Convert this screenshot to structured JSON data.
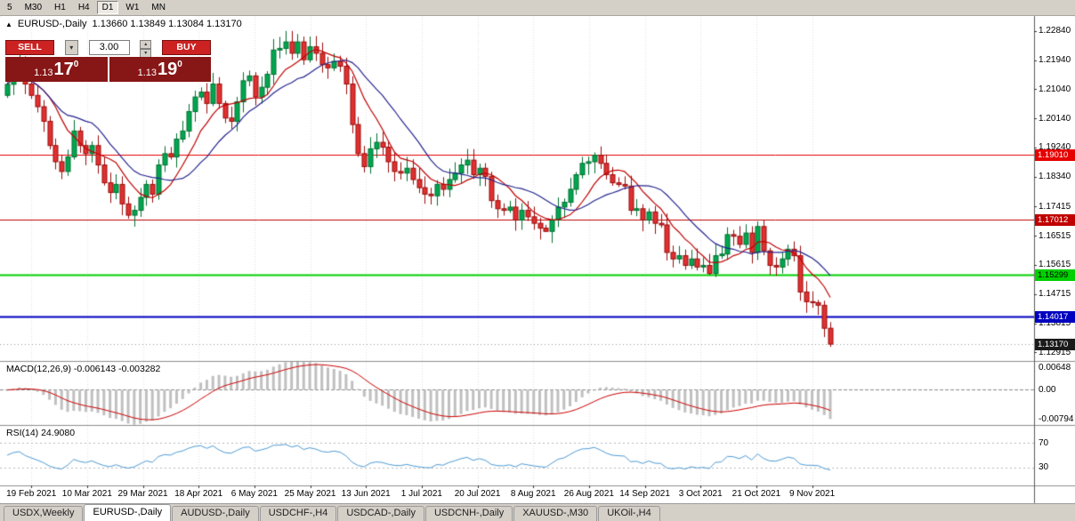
{
  "toolbar": {
    "timeframes": [
      {
        "label": "5"
      },
      {
        "label": "M30"
      },
      {
        "label": "H1"
      },
      {
        "label": "H4"
      },
      {
        "label": "D1",
        "active": true
      },
      {
        "label": "W1"
      },
      {
        "label": "MN"
      }
    ]
  },
  "chart": {
    "title": "EURUSD-,Daily",
    "ohlc_text": "1.13660 1.13849 1.13084 1.13170"
  },
  "trade": {
    "sell_label": "SELL",
    "buy_label": "BUY",
    "volume": "3.00",
    "bid_price": "1.13170",
    "ask_price": "1.13190",
    "bid": {
      "prefix": "1.13",
      "big": "17",
      "sup": "0"
    },
    "ask": {
      "prefix": "1.13",
      "big": "19",
      "sup": "0"
    }
  },
  "chart_data": {
    "type": "candlestick",
    "symbol": "EURUSD-",
    "timeframe": "Daily",
    "ohlc_current": {
      "open": 1.1366,
      "high": 1.13849,
      "low": 1.13084,
      "close": 1.1317
    },
    "y_axis_labels": [
      "1.22840",
      "1.21940",
      "1.21040",
      "1.20140",
      "1.19240",
      "1.18340",
      "1.17415",
      "1.16515",
      "1.15615",
      "1.14715",
      "1.13815",
      "1.12915"
    ],
    "x_labels": [
      "19 Feb 2021",
      "10 Mar 2021",
      "29 Mar 2021",
      "18 Apr 2021",
      "6 May 2021",
      "25 May 2021",
      "13 Jun 2021",
      "1 Jul 2021",
      "20 Jul 2021",
      "8 Aug 2021",
      "26 Aug 2021",
      "14 Sep 2021",
      "3 Oct 2021",
      "21 Oct 2021",
      "9 Nov 2021"
    ],
    "price_range": [
      1.1265,
      1.233
    ],
    "first_open": 1.2085,
    "closes": [
      1.2119,
      1.2155,
      1.217,
      1.212,
      1.2085,
      1.205,
      1.2005,
      1.193,
      1.188,
      1.185,
      1.1895,
      1.1975,
      1.193,
      1.1905,
      1.193,
      1.187,
      1.1815,
      1.1785,
      1.181,
      1.175,
      1.1715,
      1.173,
      1.177,
      1.181,
      1.178,
      1.187,
      1.1905,
      1.1895,
      1.195,
      1.1975,
      1.2035,
      1.208,
      1.2095,
      1.206,
      1.212,
      1.206,
      1.2015,
      1.2005,
      1.2065,
      1.213,
      1.2145,
      1.208,
      1.211,
      1.215,
      1.2225,
      1.223,
      1.225,
      1.2215,
      1.225,
      1.2195,
      1.2235,
      1.2215,
      1.218,
      1.217,
      1.219,
      1.2175,
      1.212,
      1.1995,
      1.1905,
      1.1865,
      1.192,
      1.194,
      1.1925,
      1.188,
      1.185,
      1.1845,
      1.186,
      1.1825,
      1.18,
      1.178,
      1.1775,
      1.181,
      1.1795,
      1.1825,
      1.1845,
      1.187,
      1.1885,
      1.184,
      1.186,
      1.1835,
      1.176,
      1.1735,
      1.173,
      1.174,
      1.17,
      1.173,
      1.171,
      1.169,
      1.1675,
      1.1665,
      1.17,
      1.174,
      1.1755,
      1.1795,
      1.184,
      1.1875,
      1.188,
      1.19,
      1.1875,
      1.184,
      1.1815,
      1.181,
      1.1805,
      1.173,
      1.1735,
      1.17,
      1.1725,
      1.169,
      1.1685,
      1.16,
      1.158,
      1.159,
      1.156,
      1.158,
      1.1555,
      1.156,
      1.1535,
      1.159,
      1.1595,
      1.1655,
      1.165,
      1.1625,
      1.166,
      1.16,
      1.168,
      1.1605,
      1.156,
      1.1555,
      1.158,
      1.161,
      1.159,
      1.1478,
      1.1448,
      1.1445,
      1.1437,
      1.1366,
      1.1317
    ],
    "wick_overrides": {
      "2": {
        "h": 1.2243
      },
      "20": {
        "l": 1.1704
      },
      "46": {
        "h": 1.2284
      },
      "59": {
        "l": 1.1847
      },
      "89": {
        "l": 1.1664
      },
      "97": {
        "h": 1.1909
      },
      "116": {
        "l": 1.153
      },
      "136": {
        "h": 1.13849,
        "l": 1.13084
      }
    },
    "h_lines": [
      {
        "price": 1.1901,
        "label": "1.19010",
        "color": "#e60000",
        "text": "#ffffff",
        "width": 1
      },
      {
        "price": 1.17012,
        "label": "1.17012",
        "color": "#c00000",
        "text": "#ffffff",
        "width": 1
      },
      {
        "price": 1.15299,
        "label": "1.15299",
        "color": "#00d000",
        "text": "#000000",
        "width": 2
      },
      {
        "price": 1.14017,
        "label": "1.14017",
        "color": "#0000c0",
        "text": "#ffffff",
        "width": 2
      },
      {
        "price": 1.1317,
        "label": "1.13170",
        "color": "#1a1a1a",
        "text": "#ffffff",
        "width": 0
      }
    ],
    "ma": {
      "fast_period": 8,
      "slow_period": 15,
      "fast_color": "#c00000",
      "slow_color": "#24248f"
    },
    "indicators": {
      "macd": {
        "label_full": "MACD(12,26,9) -0.006143 -0.003282",
        "params": [
          12,
          26,
          9
        ],
        "main_value": -0.006143,
        "signal_value": -0.003282,
        "axis_labels": [
          "0.00648",
          "0.00",
          "-0.00794"
        ],
        "range": [
          -0.009,
          0.0074
        ]
      },
      "rsi": {
        "label_full": "RSI(14) 24.9080",
        "period": 14,
        "current": 24.908,
        "levels": [
          70,
          30
        ],
        "axis_labels": [
          "70",
          "30"
        ],
        "range": [
          0,
          100
        ]
      }
    }
  },
  "tabs": [
    {
      "label": "USDX,Weekly"
    },
    {
      "label": "EURUSD-,Daily",
      "active": true
    },
    {
      "label": "AUDUSD-,Daily"
    },
    {
      "label": "USDCHF-,H4"
    },
    {
      "label": "USDCAD-,Daily"
    },
    {
      "label": "USDCNH-,Daily"
    },
    {
      "label": "XAUUSD-,M30"
    },
    {
      "label": "UKOil-,H4"
    }
  ],
  "colors": {
    "up": "#00a651",
    "up_border": "#00702f",
    "down": "#e03131",
    "down_border": "#9c0b0b",
    "grid": "#e4e4e4",
    "panel_border": "#8e8e8e",
    "macd_hist": "#c0c0c0",
    "macd_signal": "#cc0000",
    "rsi_line": "#4f9bd5",
    "bg": "#ffffff",
    "chrome": "#d4d0c8"
  }
}
